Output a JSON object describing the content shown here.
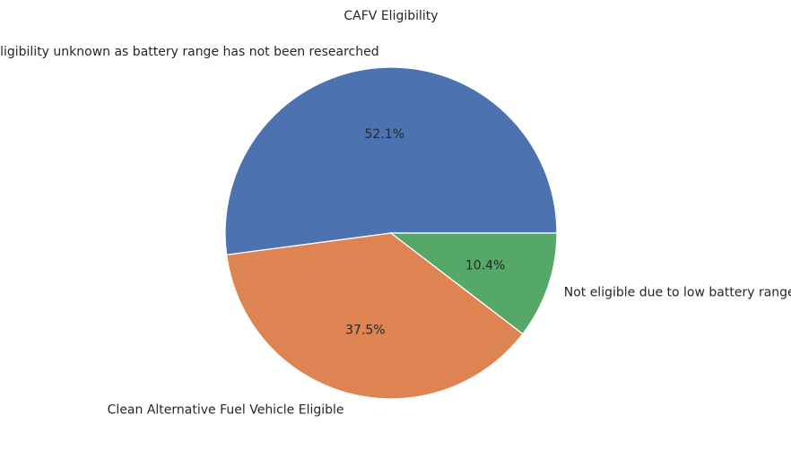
{
  "chart_data": {
    "type": "pie",
    "title": "CAFV Eligibility",
    "categories": [
      "Eligibility unknown as battery range has not been researched",
      "Clean Alternative Fuel Vehicle Eligible",
      "Not eligible due to low battery range"
    ],
    "values": [
      52.1,
      37.5,
      10.4
    ],
    "value_labels": [
      "52.1%",
      "37.5%",
      "10.4%"
    ],
    "colors": [
      "#4c72b0",
      "#dd8452",
      "#55a868"
    ],
    "start_angle_deg": 0,
    "direction": "counterclockwise",
    "legend": "none"
  }
}
